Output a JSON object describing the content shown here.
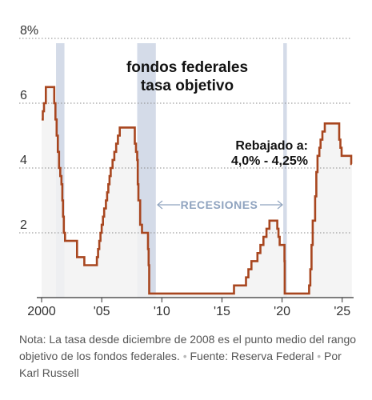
{
  "chart_data": {
    "type": "line",
    "title_lines": [
      "fondos federales",
      "tasa objetivo"
    ],
    "annotation_lines": [
      "Rebajado a:",
      "4,0% - 4,25%"
    ],
    "recession_label": "RECESIONES",
    "y_ticks": [
      {
        "value": 8,
        "label": "8%"
      },
      {
        "value": 6,
        "label": "6"
      },
      {
        "value": 4,
        "label": "4"
      },
      {
        "value": 2,
        "label": "2"
      }
    ],
    "x_ticks": [
      {
        "value": 2000,
        "label": "2000"
      },
      {
        "value": 2005,
        "label": "'05"
      },
      {
        "value": 2010,
        "label": "'10"
      },
      {
        "value": 2015,
        "label": "'15"
      },
      {
        "value": 2020,
        "label": "'20"
      },
      {
        "value": 2025,
        "label": "'25"
      }
    ],
    "xlim": [
      2000,
      2025.8
    ],
    "ylim": [
      0,
      8
    ],
    "grid": true,
    "line_color": "#a8461f",
    "recession_color": "#d4dbe8",
    "fill_color": "#f2f2f2",
    "recessions": [
      {
        "start": 2001.2,
        "end": 2001.9
      },
      {
        "start": 2007.95,
        "end": 2009.5
      },
      {
        "start": 2020.1,
        "end": 2020.4
      }
    ],
    "series": [
      {
        "points": [
          [
            2000.0,
            5.5
          ],
          [
            2000.1,
            5.75
          ],
          [
            2000.2,
            6.0
          ],
          [
            2000.35,
            6.5
          ],
          [
            2001.0,
            6.5
          ],
          [
            2001.05,
            6.0
          ],
          [
            2001.15,
            5.5
          ],
          [
            2001.25,
            5.0
          ],
          [
            2001.35,
            4.5
          ],
          [
            2001.45,
            4.0
          ],
          [
            2001.55,
            3.75
          ],
          [
            2001.65,
            3.5
          ],
          [
            2001.72,
            3.0
          ],
          [
            2001.78,
            2.5
          ],
          [
            2001.85,
            2.0
          ],
          [
            2001.95,
            1.75
          ],
          [
            2002.9,
            1.75
          ],
          [
            2002.95,
            1.25
          ],
          [
            2003.5,
            1.25
          ],
          [
            2003.55,
            1.0
          ],
          [
            2004.5,
            1.0
          ],
          [
            2004.6,
            1.25
          ],
          [
            2004.7,
            1.5
          ],
          [
            2004.8,
            1.75
          ],
          [
            2004.9,
            2.0
          ],
          [
            2005.0,
            2.25
          ],
          [
            2005.1,
            2.5
          ],
          [
            2005.2,
            2.75
          ],
          [
            2005.35,
            3.0
          ],
          [
            2005.45,
            3.25
          ],
          [
            2005.55,
            3.5
          ],
          [
            2005.65,
            3.75
          ],
          [
            2005.75,
            4.0
          ],
          [
            2005.9,
            4.25
          ],
          [
            2006.05,
            4.5
          ],
          [
            2006.2,
            4.75
          ],
          [
            2006.35,
            5.0
          ],
          [
            2006.5,
            5.25
          ],
          [
            2007.7,
            5.25
          ],
          [
            2007.75,
            4.75
          ],
          [
            2007.85,
            4.5
          ],
          [
            2007.95,
            4.25
          ],
          [
            2008.0,
            3.5
          ],
          [
            2008.05,
            3.0
          ],
          [
            2008.2,
            2.25
          ],
          [
            2008.35,
            2.0
          ],
          [
            2008.8,
            2.0
          ],
          [
            2008.85,
            1.5
          ],
          [
            2008.9,
            1.0
          ],
          [
            2008.95,
            0.125
          ],
          [
            2015.95,
            0.125
          ],
          [
            2016.0,
            0.375
          ],
          [
            2016.95,
            0.375
          ],
          [
            2017.0,
            0.625
          ],
          [
            2017.2,
            0.875
          ],
          [
            2017.45,
            1.125
          ],
          [
            2017.95,
            1.375
          ],
          [
            2018.2,
            1.625
          ],
          [
            2018.45,
            1.875
          ],
          [
            2018.7,
            2.125
          ],
          [
            2018.95,
            2.375
          ],
          [
            2019.55,
            2.375
          ],
          [
            2019.6,
            2.125
          ],
          [
            2019.7,
            1.875
          ],
          [
            2019.8,
            1.625
          ],
          [
            2020.15,
            1.625
          ],
          [
            2020.2,
            1.125
          ],
          [
            2020.22,
            0.125
          ],
          [
            2022.2,
            0.125
          ],
          [
            2022.25,
            0.375
          ],
          [
            2022.35,
            0.875
          ],
          [
            2022.45,
            1.625
          ],
          [
            2022.55,
            2.375
          ],
          [
            2022.75,
            3.125
          ],
          [
            2022.85,
            3.875
          ],
          [
            2022.95,
            4.375
          ],
          [
            2023.1,
            4.625
          ],
          [
            2023.2,
            4.875
          ],
          [
            2023.35,
            5.125
          ],
          [
            2023.55,
            5.375
          ],
          [
            2024.7,
            5.375
          ],
          [
            2024.75,
            4.875
          ],
          [
            2024.85,
            4.625
          ],
          [
            2024.95,
            4.375
          ],
          [
            2025.7,
            4.375
          ],
          [
            2025.75,
            4.125
          ],
          [
            2025.8,
            4.125
          ]
        ]
      }
    ]
  },
  "footer": {
    "note_text": "Nota: La tasa desde diciembre de 2008 es el punto medio del rango objetivo de los fondos federales.",
    "separator": "•",
    "source_text": "Fuente: Reserva Federal",
    "byline_text": "Por Karl Russell"
  }
}
